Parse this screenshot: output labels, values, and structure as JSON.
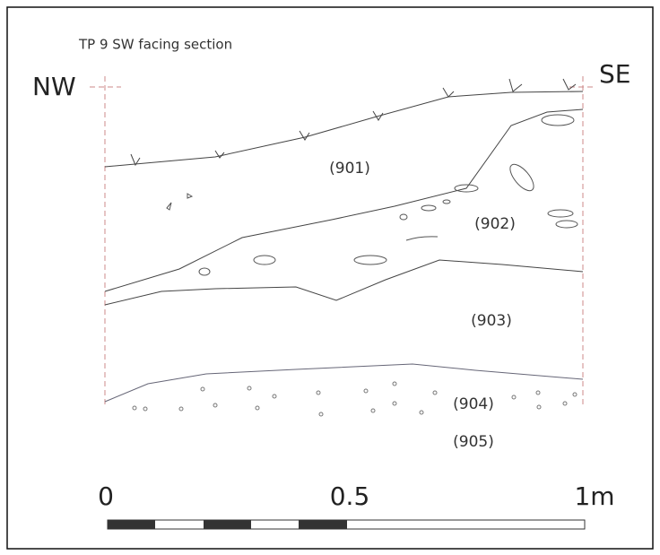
{
  "title": "TP 9 SW facing section",
  "orientation": {
    "left": "NW",
    "right": "SE"
  },
  "layers": [
    "(901)",
    "(902)",
    "(903)",
    "(904)",
    "(905)"
  ],
  "scale": {
    "labels": [
      "0",
      "0.5",
      "1m"
    ]
  }
}
